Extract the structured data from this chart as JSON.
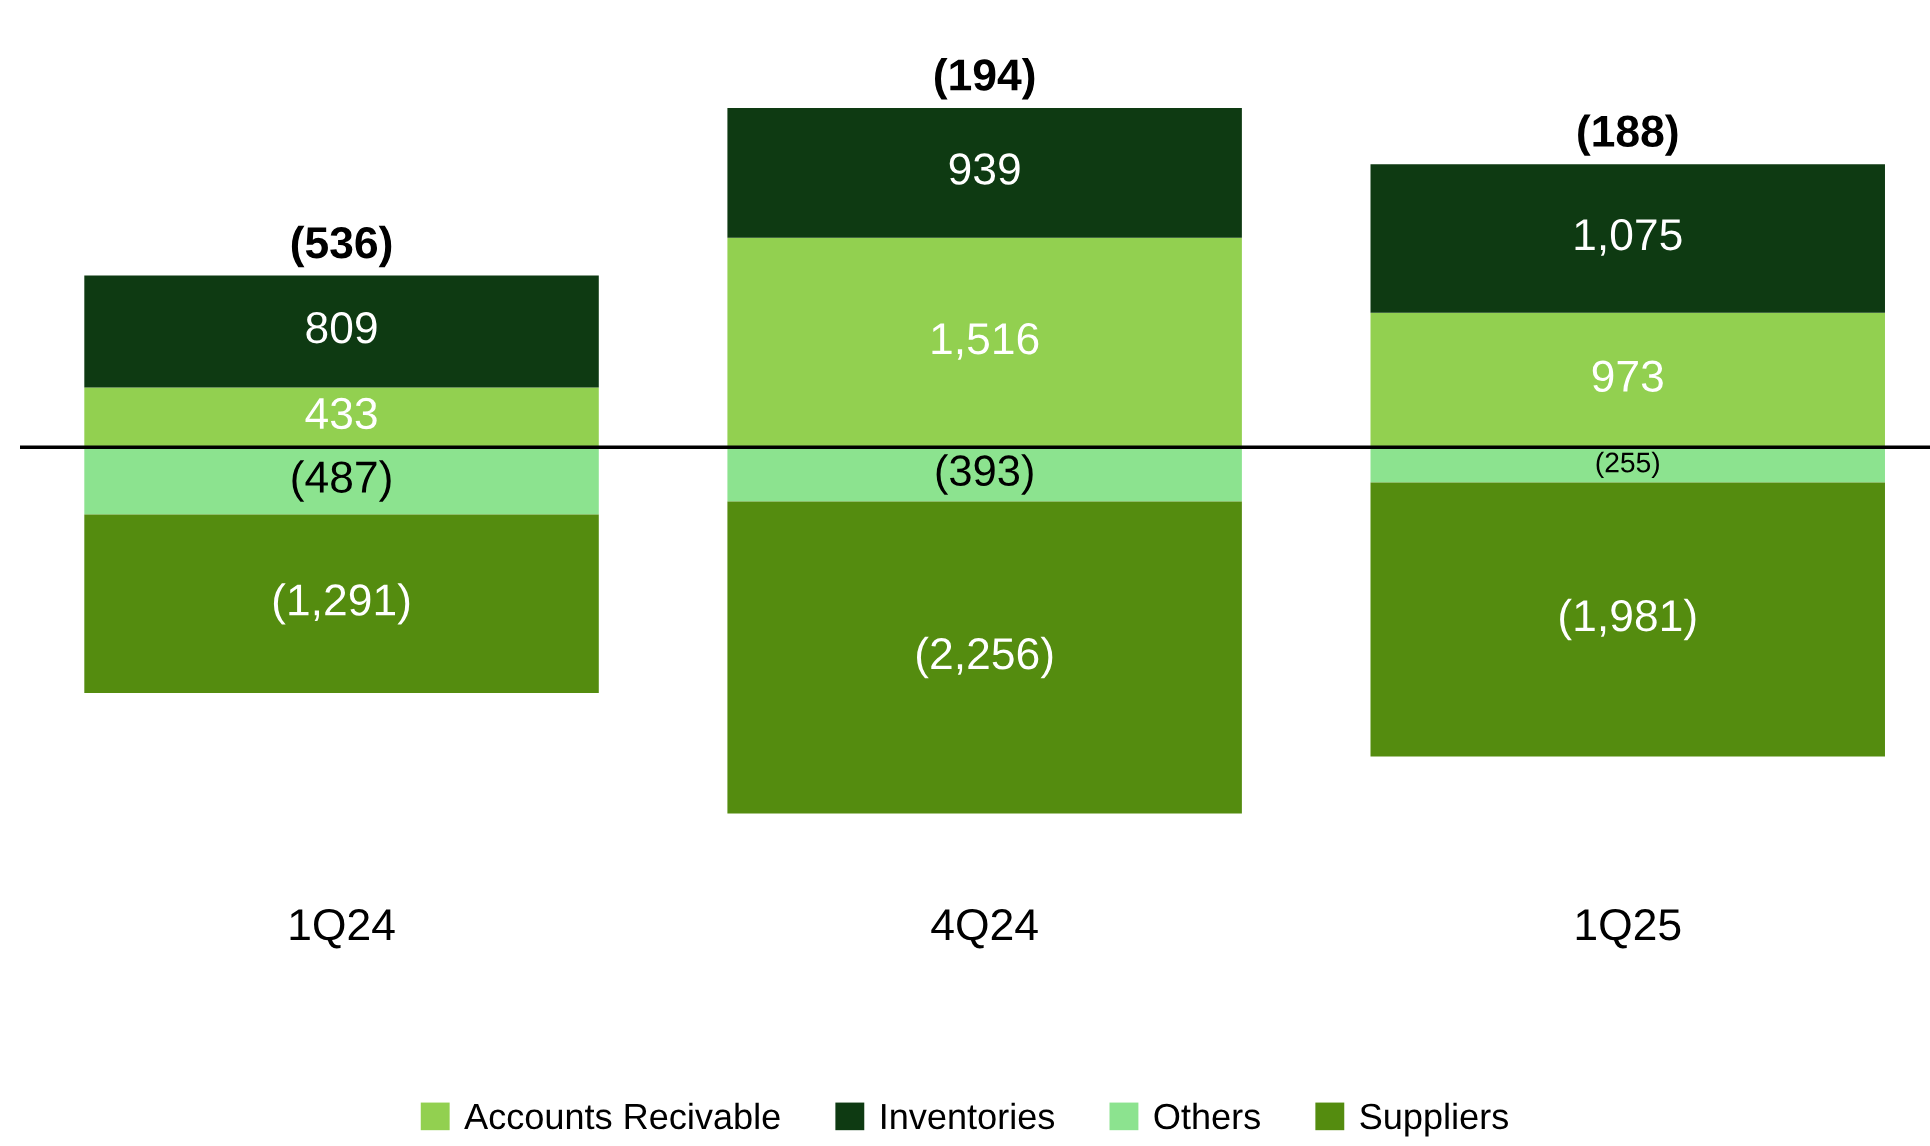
{
  "chart_data": {
    "type": "bar",
    "stacked": true,
    "categories": [
      "1Q24",
      "4Q24",
      "1Q25"
    ],
    "series": [
      {
        "name": "Accounts Recivable",
        "color": "#92d050",
        "values": [
          433,
          1516,
          973
        ],
        "value_labels": [
          "433",
          "1,516",
          "973"
        ]
      },
      {
        "name": "Inventories",
        "color": "#0e3a12",
        "values": [
          809,
          939,
          1075
        ],
        "value_labels": [
          "809",
          "939",
          "1,075"
        ]
      },
      {
        "name": "Others",
        "color": "#8ce38f",
        "values": [
          -487,
          -393,
          -255
        ],
        "value_labels": [
          "(487)",
          "(393)",
          "(255)"
        ]
      },
      {
        "name": "Suppliers",
        "color": "#548c0f",
        "values": [
          -1291,
          -2256,
          -1981
        ],
        "value_labels": [
          "(1,291)",
          "(2,256)",
          "(1,981)"
        ]
      }
    ],
    "totals": [
      "(536)",
      "(194)",
      "(188)"
    ],
    "ref_lines": [
      {
        "axis": "y",
        "value": 0,
        "color": "#000000"
      }
    ],
    "legend": "bottom",
    "grid": false
  }
}
